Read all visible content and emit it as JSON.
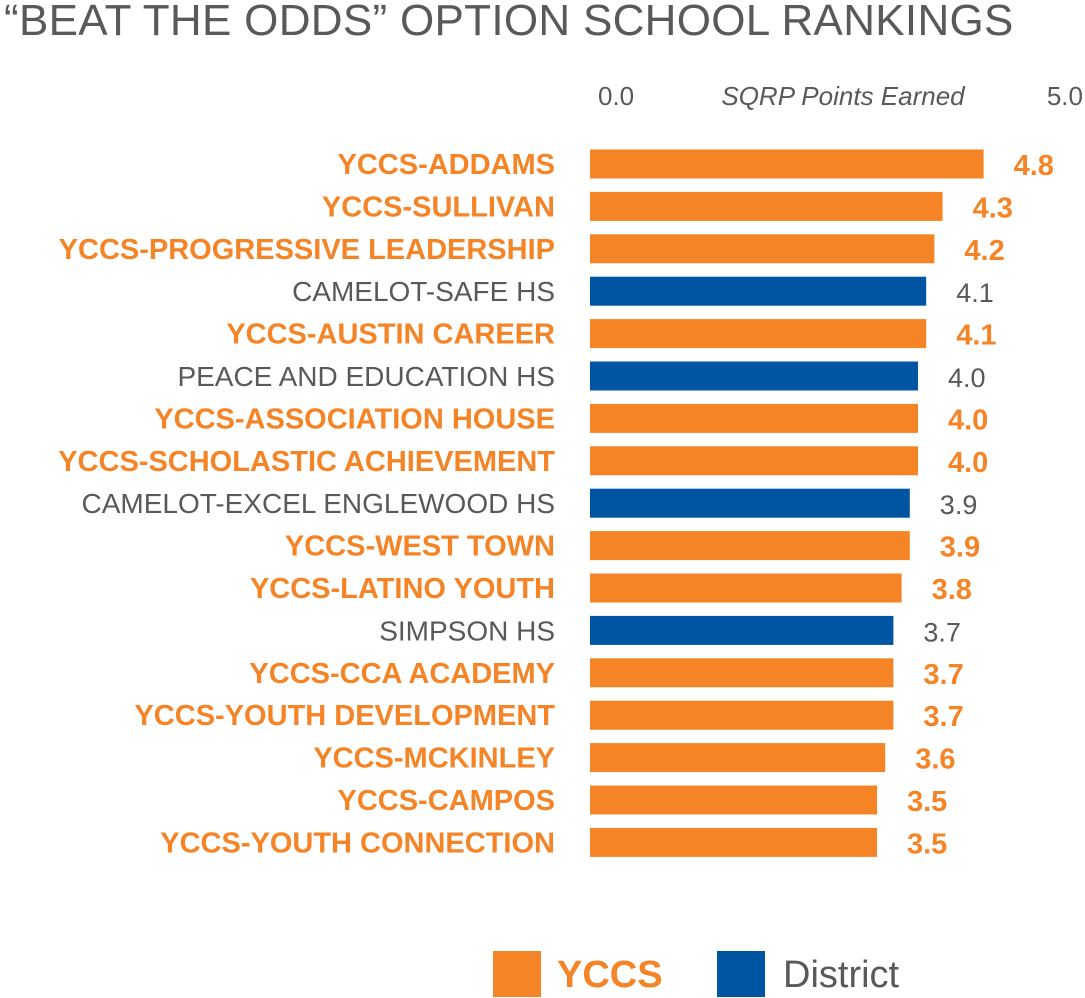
{
  "chart_data": {
    "type": "bar",
    "orientation": "horizontal",
    "title": "“BEAT THE ODDS” OPTION SCHOOL RANKINGS",
    "xlabel": "SQRP Points Earned",
    "xlim": [
      0,
      5
    ],
    "tick_labels": [
      "0.0",
      "5.0"
    ],
    "categories": [
      "YCCS-ADDAMS",
      "YCCS-SULLIVAN",
      "YCCS-PROGRESSIVE LEADERSHIP",
      "CAMELOT-SAFE HS",
      "YCCS-AUSTIN CAREER",
      "PEACE AND EDUCATION HS",
      "YCCS-ASSOCIATION HOUSE",
      "YCCS-SCHOLASTIC ACHIEVEMENT",
      "CAMELOT-EXCEL ENGLEWOOD HS",
      "YCCS-WEST TOWN",
      "YCCS-LATINO YOUTH",
      "SIMPSON HS",
      "YCCS-CCA ACADEMY",
      "YCCS-YOUTH DEVELOPMENT",
      "YCCS-MCKINLEY",
      "YCCS-CAMPOS",
      "YCCS-YOUTH CONNECTION"
    ],
    "values": [
      4.8,
      4.3,
      4.2,
      4.1,
      4.1,
      4.0,
      4.0,
      4.0,
      3.9,
      3.9,
      3.8,
      3.7,
      3.7,
      3.7,
      3.6,
      3.5,
      3.5
    ],
    "value_labels": [
      "4.8",
      "4.3",
      "4.2",
      "4.1",
      "4.1",
      "4.0",
      "4.0",
      "4.0",
      "3.9",
      "3.9",
      "3.8",
      "3.7",
      "3.7",
      "3.7",
      "3.6",
      "3.5",
      "3.5"
    ],
    "groups": [
      "YCCS",
      "YCCS",
      "YCCS",
      "District",
      "YCCS",
      "District",
      "YCCS",
      "YCCS",
      "District",
      "YCCS",
      "YCCS",
      "District",
      "YCCS",
      "YCCS",
      "YCCS",
      "YCCS",
      "YCCS"
    ],
    "legend": [
      {
        "name": "YCCS",
        "color": "#f58426"
      },
      {
        "name": "District",
        "color": "#0055a2"
      }
    ],
    "legend_position": "bottom",
    "grid": false
  },
  "colors": {
    "yccs": "#f58426",
    "district": "#0055a2",
    "text_gray": "#58595b"
  }
}
